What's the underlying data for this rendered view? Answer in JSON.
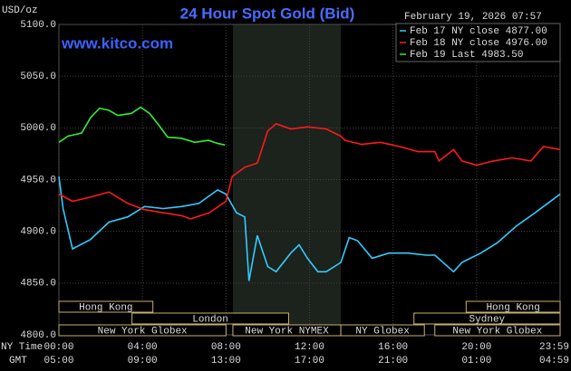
{
  "chart_data": {
    "type": "line",
    "title": "24 Hour Spot Gold (Bid)",
    "watermark": "www.kitco.com",
    "timestamp": "February 19, 2026 07:57",
    "y_label": "USD/oz",
    "x_label": "NY Time",
    "x2_label": "GMT",
    "xlim": [
      0,
      24
    ],
    "ylim": [
      4800,
      5100
    ],
    "yticks": [
      {
        "value": 4800,
        "label": "4800.0"
      },
      {
        "value": 4850,
        "label": "4850.0"
      },
      {
        "value": 4900,
        "label": "4900.0"
      },
      {
        "value": 4950,
        "label": "4950.0"
      },
      {
        "value": 5000,
        "label": "5000.0"
      },
      {
        "value": 5050,
        "label": "5050.0"
      },
      {
        "value": 5100,
        "label": "5100.0"
      }
    ],
    "xticks": [
      {
        "value": 0,
        "label": "00:00"
      },
      {
        "value": 4,
        "label": "04:00"
      },
      {
        "value": 8,
        "label": "08:00"
      },
      {
        "value": 12,
        "label": "12:00"
      },
      {
        "value": 16,
        "label": "16:00"
      },
      {
        "value": 20,
        "label": "20:00"
      },
      {
        "value": 23.983,
        "label": "23:59"
      }
    ],
    "x2ticks": [
      {
        "value": 0,
        "label": "05:00"
      },
      {
        "value": 4,
        "label": "09:00"
      },
      {
        "value": 8,
        "label": "13:00"
      },
      {
        "value": 12,
        "label": "17:00"
      },
      {
        "value": 16,
        "label": "21:00"
      },
      {
        "value": 20,
        "label": "01:00"
      },
      {
        "value": 23.983,
        "label": "04:59"
      }
    ],
    "grid": true,
    "legend": "top-right",
    "sessions": [
      {
        "name": "Hong Kong",
        "start": 0,
        "end": 4.5
      },
      {
        "name": "London",
        "start": 3.5,
        "end": 11
      },
      {
        "name": "New York Globex",
        "start": 0,
        "end": 8
      },
      {
        "name": "New York NYMEX",
        "start": 8.33,
        "end": 13.5
      },
      {
        "name": "NY Globex",
        "start": 13.5,
        "end": 17.5
      },
      {
        "name": "Sydney",
        "start": 17,
        "end": 24
      },
      {
        "name": "Hong Kong",
        "start": 19.5,
        "end": 24
      },
      {
        "name": "New York Globex",
        "start": 18,
        "end": 24
      }
    ],
    "series": [
      {
        "name": "Feb 17 NY close 4877.00",
        "color": "#33ccff",
        "x": [
          0,
          0.2,
          0.65,
          1.5,
          2.4,
          3.3,
          4.1,
          5,
          5.9,
          6.7,
          7.6,
          8,
          8.5,
          8.9,
          9.1,
          9.5,
          10,
          10.4,
          11.1,
          11.5,
          11.9,
          12.4,
          12.8,
          13.5,
          13.9,
          14.3,
          15,
          15.8,
          16.7,
          17.6,
          18,
          18.9,
          19.3,
          20.2,
          21,
          21.9,
          22.8,
          23.4,
          24
        ],
        "values": [
          4953,
          4922,
          4883,
          4892,
          4909,
          4914,
          4924,
          4922,
          4924,
          4927,
          4940,
          4936,
          4918,
          4914,
          4852,
          4896,
          4866,
          4861,
          4879,
          4887,
          4874,
          4861,
          4861,
          4870,
          4894,
          4891,
          4874,
          4879,
          4879,
          4877,
          4877,
          4861,
          4870,
          4879,
          4889,
          4905,
          4918,
          4927,
          4936
        ]
      },
      {
        "name": "Feb 18 NY close 4976.00",
        "color": "#ff1a1a",
        "x": [
          0,
          0.65,
          1.5,
          2.4,
          3.3,
          4.1,
          5,
          5.9,
          6.3,
          7.2,
          8,
          8.3,
          8.9,
          9.5,
          10,
          10.4,
          11.1,
          11.9,
          12.8,
          13.5,
          13.7,
          14.5,
          15.4,
          16.3,
          17.2,
          18,
          18.2,
          18.9,
          19.3,
          20,
          20.8,
          21.7,
          22.6,
          23.2,
          24
        ],
        "values": [
          4936,
          4929,
          4933,
          4938,
          4927,
          4921,
          4918,
          4915,
          4912,
          4918,
          4929,
          4953,
          4962,
          4966,
          4997,
          5004,
          4999,
          5001,
          4999,
          4992,
          4988,
          4984,
          4986,
          4982,
          4977,
          4977,
          4968,
          4979,
          4968,
          4964,
          4968,
          4971,
          4968,
          4982,
          4979
        ]
      },
      {
        "name": "Feb 19 Last 4983.50",
        "color": "#33ee33",
        "x": [
          0,
          0.43,
          1.09,
          1.52,
          1.95,
          2.39,
          2.82,
          3.47,
          3.91,
          4.34,
          4.77,
          5.21,
          5.86,
          6.51,
          7.16,
          7.6,
          7.95
        ],
        "values": [
          4986,
          4992,
          4995,
          5010,
          5019,
          5017,
          5012,
          5014,
          5020,
          5014,
          5003,
          4991,
          4990,
          4986,
          4988,
          4985,
          4983.5
        ]
      }
    ]
  }
}
